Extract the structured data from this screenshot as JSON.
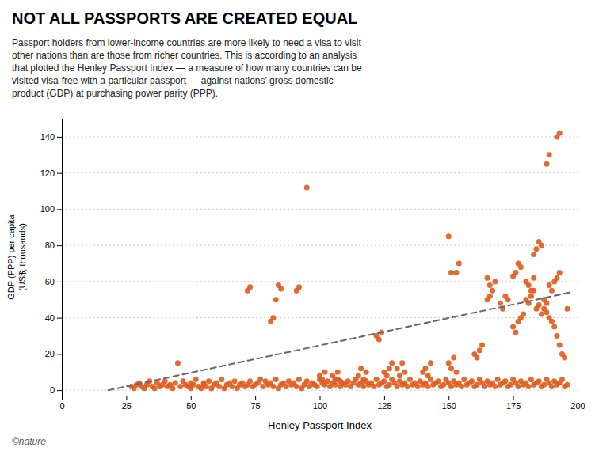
{
  "chart_data": {
    "type": "scatter",
    "title": "NOT ALL PASSPORTS ARE CREATED EQUAL",
    "subtitle": "Passport holders from lower-income countries are more likely to need a visa to visit\nother nations than are those from richer countries. This is according to an analysis\nthat plotted the Henley Passport Index — a measure of how many countries can be\nvisited visa-free with a particular passport — against nations’ gross domestic\nproduct (GDP) at purchasing power parity (PPP).",
    "xlabel": "Henley Passport Index",
    "ylabel": "GDP (PPP) per capita\n(US$, thousands)",
    "xlim": [
      0,
      200
    ],
    "ylim": [
      -3,
      150
    ],
    "xticks": [
      0,
      25,
      50,
      75,
      100,
      125,
      150,
      175,
      200
    ],
    "yticks": [
      0,
      20,
      40,
      60,
      80,
      100,
      120,
      140
    ],
    "grid": true,
    "annotations": [
      "©nature"
    ],
    "series": [
      {
        "type": "scatter",
        "color": "#E05A1A",
        "x": [
          27,
          28,
          29,
          30,
          31,
          32,
          33,
          34,
          35,
          36,
          37,
          38,
          39,
          40,
          41,
          42,
          43,
          44,
          45,
          46,
          47,
          48,
          49,
          50,
          50,
          51,
          52,
          53,
          54,
          55,
          55,
          56,
          57,
          58,
          59,
          60,
          61,
          62,
          63,
          64,
          65,
          66,
          67,
          68,
          69,
          70,
          71,
          72,
          73,
          74,
          75,
          76,
          77,
          78,
          79,
          80,
          81,
          82,
          83,
          84,
          85,
          86,
          87,
          88,
          89,
          90,
          91,
          92,
          93,
          94,
          95,
          96,
          97,
          98,
          99,
          100,
          101,
          102,
          103,
          104,
          105,
          106,
          107,
          108,
          109,
          110,
          111,
          112,
          113,
          114,
          115,
          116,
          117,
          118,
          119,
          120,
          121,
          122,
          123,
          124,
          125,
          126,
          127,
          128,
          129,
          130,
          131,
          132,
          133,
          134,
          135,
          136,
          137,
          138,
          139,
          140,
          141,
          142,
          143,
          144,
          145,
          146,
          147,
          148,
          149,
          150,
          151,
          152,
          153,
          154,
          155,
          156,
          157,
          158,
          159,
          160,
          161,
          162,
          163,
          164,
          165,
          166,
          167,
          168,
          169,
          170,
          171,
          172,
          173,
          174,
          175,
          176,
          177,
          178,
          179,
          180,
          181,
          182,
          183,
          184,
          185,
          186,
          187,
          188,
          189,
          190,
          191,
          192,
          193,
          194,
          195,
          196,
          72,
          73,
          81,
          82,
          83,
          84,
          85,
          91,
          92,
          95,
          122,
          123,
          124,
          150,
          151,
          153,
          154,
          165,
          166,
          175,
          176,
          177,
          178,
          180,
          181,
          182,
          183,
          184,
          185,
          186,
          187,
          188,
          189,
          190,
          191,
          192,
          193,
          183,
          184,
          185,
          186,
          188,
          189,
          192,
          193,
          187,
          188,
          189,
          190,
          191,
          192,
          193,
          194,
          195,
          196,
          175,
          176,
          177,
          178,
          179,
          160,
          161,
          162,
          163,
          150,
          151,
          152,
          153,
          140,
          141,
          142,
          143,
          130,
          131,
          132,
          133,
          125,
          126,
          127,
          128,
          115,
          116,
          117,
          118,
          105,
          106,
          107,
          108,
          100,
          101,
          102,
          165,
          166,
          167,
          168,
          170,
          171,
          172,
          173,
          180,
          181,
          182,
          183
        ],
        "values": [
          2,
          1,
          3,
          4,
          2,
          1,
          3,
          5,
          2,
          1,
          4,
          2,
          3,
          5,
          2,
          3,
          1,
          4,
          15,
          2,
          5,
          3,
          2,
          4,
          1,
          3,
          6,
          2,
          1,
          4,
          3,
          2,
          5,
          1,
          3,
          4,
          2,
          6,
          1,
          3,
          4,
          2,
          5,
          1,
          3,
          4,
          2,
          3,
          5,
          2,
          3,
          4,
          6,
          2,
          5,
          3,
          4,
          2,
          6,
          1,
          3,
          4,
          2,
          5,
          3,
          4,
          2,
          6,
          1,
          3,
          5,
          2,
          4,
          3,
          2,
          6,
          4,
          3,
          5,
          2,
          4,
          3,
          6,
          2,
          4,
          3,
          5,
          2,
          4,
          6,
          3,
          4,
          2,
          5,
          3,
          4,
          2,
          6,
          3,
          4,
          5,
          2,
          3,
          6,
          4,
          2,
          5,
          3,
          4,
          2,
          6,
          3,
          4,
          2,
          5,
          3,
          4,
          2,
          6,
          3,
          4,
          5,
          2,
          3,
          6,
          4,
          2,
          5,
          3,
          4,
          2,
          6,
          3,
          4,
          5,
          2,
          3,
          6,
          4,
          2,
          5,
          3,
          4,
          2,
          6,
          3,
          4,
          5,
          2,
          3,
          6,
          4,
          2,
          5,
          3,
          4,
          2,
          6,
          3,
          4,
          5,
          2,
          3,
          6,
          4,
          2,
          5,
          3,
          4,
          6,
          2,
          3,
          55,
          57,
          38,
          40,
          50,
          58,
          56,
          55,
          57,
          112,
          30,
          28,
          32,
          85,
          65,
          65,
          70,
          50,
          52,
          63,
          65,
          70,
          68,
          50,
          48,
          52,
          55,
          45,
          47,
          42,
          50,
          48,
          58,
          55,
          60,
          62,
          65,
          75,
          78,
          82,
          80,
          125,
          130,
          140,
          142,
          45,
          43,
          40,
          38,
          35,
          30,
          25,
          20,
          18,
          45,
          35,
          32,
          38,
          40,
          42,
          20,
          18,
          22,
          25,
          15,
          12,
          18,
          10,
          10,
          12,
          8,
          15,
          12,
          8,
          15,
          10,
          10,
          8,
          12,
          15,
          8,
          12,
          6,
          10,
          8,
          6,
          10,
          5,
          8,
          6,
          10,
          62,
          58,
          55,
          60,
          48,
          45,
          52,
          50,
          60,
          58,
          55,
          62
        ]
      },
      {
        "type": "line",
        "color": "#666666",
        "line_style": "dashed",
        "x": [
          18,
          197
        ],
        "values": [
          0.0,
          54.0
        ]
      }
    ]
  }
}
